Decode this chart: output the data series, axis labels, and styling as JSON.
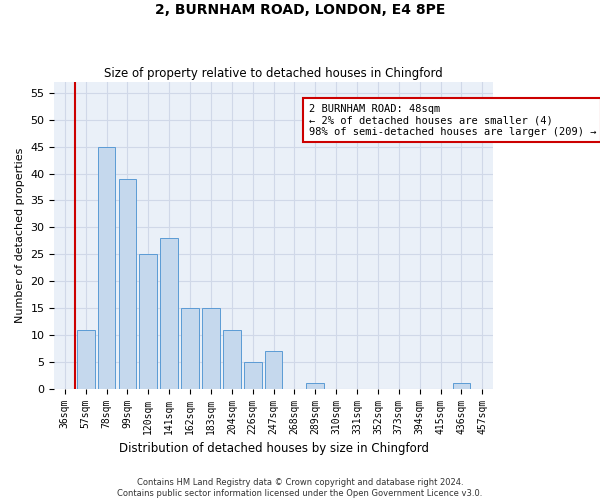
{
  "title1": "2, BURNHAM ROAD, LONDON, E4 8PE",
  "title2": "Size of property relative to detached houses in Chingford",
  "xlabel": "Distribution of detached houses by size in Chingford",
  "ylabel": "Number of detached properties",
  "footer": "Contains HM Land Registry data © Crown copyright and database right 2024.\nContains public sector information licensed under the Open Government Licence v3.0.",
  "categories": [
    "36sqm",
    "57sqm",
    "78sqm",
    "99sqm",
    "120sqm",
    "141sqm",
    "162sqm",
    "183sqm",
    "204sqm",
    "226sqm",
    "247sqm",
    "268sqm",
    "289sqm",
    "310sqm",
    "331sqm",
    "352sqm",
    "373sqm",
    "394sqm",
    "415sqm",
    "436sqm",
    "457sqm"
  ],
  "values": [
    0,
    11,
    45,
    39,
    25,
    28,
    15,
    15,
    11,
    5,
    7,
    0,
    1,
    0,
    0,
    0,
    0,
    0,
    0,
    1,
    0
  ],
  "bar_color": "#c5d8ed",
  "bar_edge_color": "#5b9bd5",
  "vline_color": "#cc0000",
  "annotation_text": "2 BURNHAM ROAD: 48sqm\n← 2% of detached houses are smaller (4)\n98% of semi-detached houses are larger (209) →",
  "annotation_box_color": "#cc0000",
  "ylim": [
    0,
    57
  ],
  "yticks": [
    0,
    5,
    10,
    15,
    20,
    25,
    30,
    35,
    40,
    45,
    50,
    55
  ],
  "grid_color": "#d0d8e8",
  "background_color": "#eaf0f8"
}
